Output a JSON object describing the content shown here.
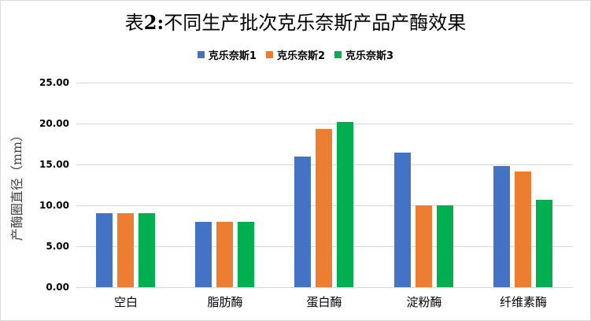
{
  "chart_data": {
    "type": "bar",
    "title": "表2:不同生产批次克乐奈斯产品产酶效果",
    "xlabel": "",
    "ylabel": "产酶圈直径（mm）",
    "categories": [
      "空白",
      "脂肪酶",
      "蛋白酶",
      "淀粉酶",
      "纤维素酶"
    ],
    "series": [
      {
        "name": "克乐奈斯1",
        "color": "#4472c4",
        "values": [
          9.0,
          8.0,
          16.0,
          16.4,
          14.8
        ]
      },
      {
        "name": "克乐奈斯2",
        "color": "#ed7d31",
        "values": [
          9.0,
          8.0,
          19.3,
          10.0,
          14.1
        ]
      },
      {
        "name": "克乐奈斯3",
        "color": "#00b050",
        "values": [
          9.0,
          8.0,
          20.2,
          10.0,
          10.7
        ]
      }
    ],
    "ylim": [
      0,
      25
    ],
    "yticks": [
      "0.00",
      "5.00",
      "10.00",
      "15.00",
      "20.00",
      "25.00"
    ],
    "grid": true,
    "legend_position": "top"
  },
  "title": {
    "prefix": "表",
    "num": "2:",
    "rest": "不同生产批次克乐奈斯产品产酶效果"
  },
  "legend": [
    "克乐奈斯1",
    "克乐奈斯2",
    "克乐奈斯3"
  ]
}
